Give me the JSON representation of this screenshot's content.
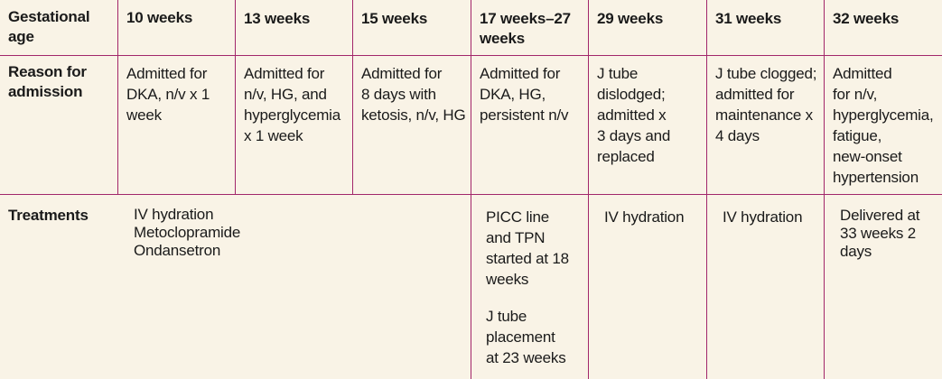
{
  "row_labels": {
    "gestational_age": [
      "Gestational",
      "age"
    ],
    "reason": [
      "Reason for",
      "admission"
    ],
    "treatments": "Treatments"
  },
  "columns": [
    {
      "label": [
        "10 weeks"
      ],
      "reason": [
        "Admitted for",
        "DKA, n/v x 1",
        "week"
      ]
    },
    {
      "label": [
        "13 weeks"
      ],
      "reason": [
        "Admitted for",
        "n/v, HG, and",
        "hyperglycemia",
        "x 1 week"
      ]
    },
    {
      "label": [
        "15 weeks"
      ],
      "reason": [
        "Admitted for",
        "8 days with",
        "ketosis, n/v, HG"
      ]
    },
    {
      "label": [
        "17 weeks–27",
        "weeks"
      ],
      "reason": [
        "Admitted for",
        "DKA, HG,",
        "persistent n/v"
      ]
    },
    {
      "label": [
        "29 weeks"
      ],
      "reason": [
        "J tube",
        "dislodged;",
        "admitted x",
        "3 days and",
        "replaced"
      ]
    },
    {
      "label": [
        "31 weeks"
      ],
      "reason": [
        "J tube clogged;",
        "admitted for",
        "maintenance x",
        "4 days"
      ]
    },
    {
      "label": [
        "32 weeks"
      ],
      "reason": [
        "Admitted",
        "for n/v,",
        "hyperglycemia,",
        "fatigue,",
        "new-onset",
        "hypertension"
      ]
    }
  ],
  "treatments": {
    "early": [
      "IV hydration",
      "Metoclopramide",
      "Ondansetron"
    ],
    "picc": [
      "PICC line",
      "and TPN",
      "started at 18",
      "weeks"
    ],
    "jtube": [
      "J tube",
      "placement",
      "at 23 weeks"
    ],
    "week29": [
      "IV hydration"
    ],
    "week31": [
      "IV hydration"
    ],
    "week32": [
      "Delivered at",
      "33 weeks 2",
      "days"
    ]
  },
  "colors": {
    "background": "#f9f3e6",
    "rule": "#a2266a",
    "text": "#1a1a1a"
  }
}
